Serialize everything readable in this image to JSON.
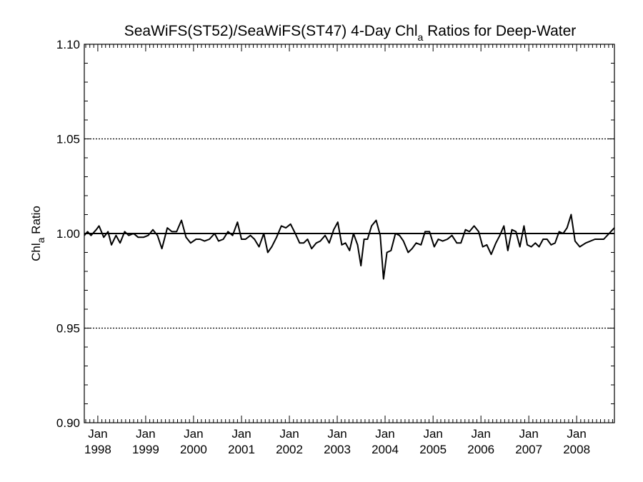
{
  "chart_data": {
    "type": "line",
    "title": {
      "pre": "SeaWiFS(ST52)/SeaWiFS(ST47) 4-Day Chl",
      "sub": "a",
      "post": " Ratios for Deep-Water"
    },
    "ylabel": {
      "pre": "Chl",
      "sub": "a",
      "post": " Ratio"
    },
    "xlabel": "",
    "ylim": [
      0.9,
      1.1
    ],
    "xlim": [
      "1997-09-20",
      "2008-10-15"
    ],
    "y_ticks": [
      "0.90",
      "0.95",
      "1.00",
      "1.05",
      "1.10"
    ],
    "x_ticks": [
      {
        "date": "1998-01-01",
        "label1": "Jan",
        "label2": "1998"
      },
      {
        "date": "1999-01-01",
        "label1": "Jan",
        "label2": "1999"
      },
      {
        "date": "2000-01-01",
        "label1": "Jan",
        "label2": "2000"
      },
      {
        "date": "2001-01-01",
        "label1": "Jan",
        "label2": "2001"
      },
      {
        "date": "2002-01-01",
        "label1": "Jan",
        "label2": "2002"
      },
      {
        "date": "2003-01-01",
        "label1": "Jan",
        "label2": "2003"
      },
      {
        "date": "2004-01-01",
        "label1": "Jan",
        "label2": "2004"
      },
      {
        "date": "2005-01-01",
        "label1": "Jan",
        "label2": "2005"
      },
      {
        "date": "2006-01-01",
        "label1": "Jan",
        "label2": "2006"
      },
      {
        "date": "2007-01-01",
        "label1": "Jan",
        "label2": "2007"
      },
      {
        "date": "2008-01-01",
        "label1": "Jan",
        "label2": "2008"
      }
    ],
    "grid": "dotted horizontal at 0.95, 1.00, 1.05",
    "reference_line": 1.0,
    "series": [
      {
        "color": "#000000",
        "x": [
          "1997-09-20",
          "1997-10-15",
          "1997-11-10",
          "1997-12-20",
          "1998-01-10",
          "1998-02-15",
          "1998-03-20",
          "1998-04-15",
          "1998-05-20",
          "1998-06-20",
          "1998-07-25",
          "1998-08-25",
          "1998-10-01",
          "1998-11-05",
          "1998-12-15",
          "1999-01-20",
          "1999-02-25",
          "1999-04-01",
          "1999-05-05",
          "1999-06-15",
          "1999-07-20",
          "1999-08-25",
          "1999-10-01",
          "1999-11-05",
          "1999-12-10",
          "2000-01-20",
          "2000-02-20",
          "2000-03-25",
          "2000-05-01",
          "2000-06-10",
          "2000-07-10",
          "2000-08-15",
          "2000-09-20",
          "2000-10-25",
          "2000-12-01",
          "2001-01-01",
          "2001-02-01",
          "2001-03-10",
          "2001-04-10",
          "2001-05-15",
          "2001-06-20",
          "2001-07-20",
          "2001-08-20",
          "2001-09-25",
          "2001-11-01",
          "2001-12-05",
          "2002-01-10",
          "2002-02-15",
          "2002-03-20",
          "2002-04-20",
          "2002-05-20",
          "2002-06-20",
          "2002-07-25",
          "2002-08-25",
          "2002-10-01",
          "2002-11-01",
          "2002-12-05",
          "2003-01-05",
          "2003-02-05",
          "2003-03-05",
          "2003-04-05",
          "2003-05-05",
          "2003-06-05",
          "2003-07-01",
          "2003-07-25",
          "2003-08-20",
          "2003-09-20",
          "2003-10-25",
          "2003-11-25",
          "2003-12-20",
          "2004-01-15",
          "2004-02-15",
          "2004-03-20",
          "2004-04-20",
          "2004-05-20",
          "2004-06-25",
          "2004-07-25",
          "2004-08-25",
          "2004-10-01",
          "2004-11-01",
          "2004-12-05",
          "2005-01-10",
          "2005-02-10",
          "2005-03-15",
          "2005-04-20",
          "2005-05-25",
          "2005-07-01",
          "2005-08-01",
          "2005-09-05",
          "2005-10-05",
          "2005-11-10",
          "2005-12-15",
          "2006-01-15",
          "2006-02-15",
          "2006-03-20",
          "2006-04-25",
          "2006-05-25",
          "2006-06-25",
          "2006-07-25",
          "2006-08-25",
          "2006-09-25",
          "2006-10-25",
          "2006-11-25",
          "2006-12-20",
          "2007-01-20",
          "2007-02-20",
          "2007-03-20",
          "2007-04-20",
          "2007-05-20",
          "2007-06-20",
          "2007-07-20",
          "2007-08-20",
          "2007-09-20",
          "2007-10-20",
          "2007-11-20",
          "2007-12-20",
          "2008-01-25",
          "2008-03-10",
          "2008-05-20",
          "2008-07-25",
          "2008-10-15"
        ],
        "y": [
          0.999,
          1.001,
          0.999,
          1.002,
          1.004,
          0.998,
          1.001,
          0.994,
          0.999,
          0.995,
          1.001,
          0.999,
          1.0,
          0.998,
          0.998,
          0.999,
          1.002,
          0.999,
          0.992,
          1.003,
          1.001,
          1.001,
          1.007,
          0.998,
          0.995,
          0.997,
          0.997,
          0.996,
          0.997,
          1.0,
          0.996,
          0.997,
          1.001,
          0.999,
          1.006,
          0.997,
          0.997,
          0.999,
          0.997,
          0.993,
          1.0,
          0.99,
          0.993,
          0.998,
          1.004,
          1.003,
          1.005,
          1.0,
          0.995,
          0.995,
          0.997,
          0.992,
          0.995,
          0.996,
          0.999,
          0.995,
          1.002,
          1.006,
          0.994,
          0.995,
          0.991,
          1.0,
          0.994,
          0.983,
          0.997,
          0.997,
          1.004,
          1.007,
          0.999,
          0.976,
          0.99,
          0.991,
          1.0,
          0.999,
          0.996,
          0.99,
          0.992,
          0.995,
          0.994,
          1.001,
          1.001,
          0.993,
          0.997,
          0.996,
          0.997,
          0.999,
          0.995,
          0.995,
          1.002,
          1.001,
          1.004,
          1.001,
          0.993,
          0.994,
          0.989,
          0.995,
          0.999,
          1.004,
          0.991,
          1.002,
          1.001,
          0.993,
          1.004,
          0.994,
          0.993,
          0.995,
          0.993,
          0.997,
          0.997,
          0.994,
          0.995,
          1.001,
          1.0,
          1.003,
          1.01,
          0.996,
          0.993,
          0.995,
          0.997,
          0.997,
          1.003
        ]
      }
    ]
  }
}
